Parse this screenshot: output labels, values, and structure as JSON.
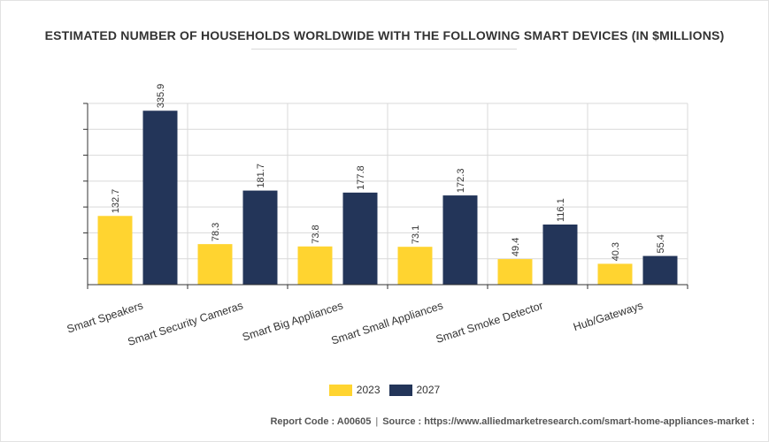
{
  "chart_data": {
    "type": "bar",
    "title": "ESTIMATED NUMBER OF HOUSEHOLDS WORLDWIDE WITH THE FOLLOWING SMART DEVICES (IN $MILLIONS)",
    "categories": [
      "Smart Speakers",
      "Smart Security Cameras",
      "Smart Big Appliances",
      "Smart Small Appliances",
      "Smart Smoke Detector",
      "Hub/Gateways"
    ],
    "series": [
      {
        "name": "2023",
        "color": "#FFD430",
        "values": [
          132.7,
          78.3,
          73.8,
          73.1,
          49.4,
          40.3
        ],
        "labels": [
          "132.7",
          "78.3",
          "73.8",
          "73.1",
          "49.4",
          "40.3"
        ]
      },
      {
        "name": "2027",
        "color": "#233559",
        "values": [
          335.9,
          181.7,
          177.8,
          172.3,
          116.1,
          55.4
        ],
        "labels": [
          "335.9",
          "181.7",
          "177.8",
          "172.3",
          "116.1",
          "55.4"
        ]
      }
    ],
    "ylim": [
      0,
      350
    ],
    "grid": true,
    "y_tick_labels_shown": false,
    "xlabel": "",
    "ylabel": "",
    "legend": "bottom-center"
  },
  "footer": {
    "report_code": "Report Code : A00605",
    "separator": "|",
    "source": "Source : https://www.alliedmarketresearch.com/smart-home-appliances-market :"
  }
}
